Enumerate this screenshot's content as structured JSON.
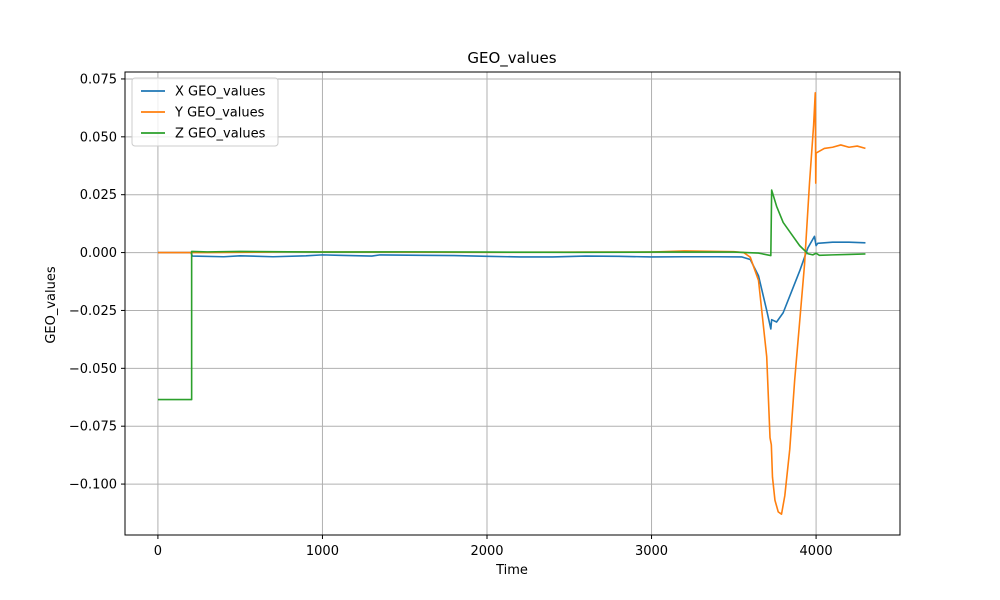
{
  "chart_data": {
    "type": "line",
    "title": "GEO_values",
    "xlabel": "Time",
    "ylabel": "GEO_values",
    "xlim": [
      -200,
      4510
    ],
    "ylim": [
      -0.122,
      0.078
    ],
    "xticks": [
      0,
      1000,
      2000,
      3000,
      4000
    ],
    "xtick_labels": [
      "0",
      "1000",
      "2000",
      "3000",
      "4000"
    ],
    "yticks": [
      -0.1,
      -0.075,
      -0.05,
      -0.025,
      0.0,
      0.025,
      0.05,
      0.075
    ],
    "ytick_labels": [
      "−0.100",
      "−0.075",
      "−0.050",
      "−0.025",
      "0.000",
      "0.025",
      "0.050",
      "0.075"
    ],
    "grid": true,
    "legend_position": "upper-left",
    "series": [
      {
        "name": "X GEO_values",
        "color": "#1f77b4",
        "points": [
          [
            0,
            0.0
          ],
          [
            200,
            0.0
          ],
          [
            210,
            -0.0015
          ],
          [
            400,
            -0.0018
          ],
          [
            500,
            -0.0014
          ],
          [
            700,
            -0.0018
          ],
          [
            900,
            -0.0014
          ],
          [
            1000,
            -0.001
          ],
          [
            1100,
            -0.0012
          ],
          [
            1300,
            -0.0015
          ],
          [
            1350,
            -0.001
          ],
          [
            1600,
            -0.0012
          ],
          [
            1800,
            -0.0013
          ],
          [
            2000,
            -0.0016
          ],
          [
            2200,
            -0.0019
          ],
          [
            2400,
            -0.0019
          ],
          [
            2600,
            -0.0015
          ],
          [
            2800,
            -0.0016
          ],
          [
            3000,
            -0.0019
          ],
          [
            3200,
            -0.0018
          ],
          [
            3400,
            -0.0018
          ],
          [
            3550,
            -0.0019
          ],
          [
            3600,
            -0.003
          ],
          [
            3650,
            -0.01
          ],
          [
            3700,
            -0.025
          ],
          [
            3725,
            -0.033
          ],
          [
            3730,
            -0.029
          ],
          [
            3760,
            -0.03
          ],
          [
            3800,
            -0.026
          ],
          [
            3850,
            -0.017
          ],
          [
            3900,
            -0.008
          ],
          [
            3950,
            0.002
          ],
          [
            3990,
            0.007
          ],
          [
            4000,
            0.003
          ],
          [
            4010,
            0.004
          ],
          [
            4100,
            0.0045
          ],
          [
            4200,
            0.0045
          ],
          [
            4300,
            0.0042
          ]
        ]
      },
      {
        "name": "Y GEO_values",
        "color": "#ff7f0e",
        "points": [
          [
            0,
            0.0
          ],
          [
            200,
            0.0
          ],
          [
            300,
            0.0
          ],
          [
            800,
            0.0003
          ],
          [
            1400,
            0.0002
          ],
          [
            2000,
            0.0001
          ],
          [
            2600,
            0.0002
          ],
          [
            3000,
            0.0002
          ],
          [
            3200,
            0.0007
          ],
          [
            3500,
            0.0004
          ],
          [
            3560,
            0.0
          ],
          [
            3600,
            -0.002
          ],
          [
            3650,
            -0.012
          ],
          [
            3700,
            -0.045
          ],
          [
            3720,
            -0.08
          ],
          [
            3728,
            -0.083
          ],
          [
            3735,
            -0.097
          ],
          [
            3750,
            -0.107
          ],
          [
            3770,
            -0.112
          ],
          [
            3790,
            -0.113
          ],
          [
            3810,
            -0.105
          ],
          [
            3840,
            -0.085
          ],
          [
            3870,
            -0.055
          ],
          [
            3900,
            -0.03
          ],
          [
            3930,
            -0.005
          ],
          [
            3960,
            0.03
          ],
          [
            3985,
            0.055
          ],
          [
            3995,
            0.069
          ],
          [
            3998,
            0.03
          ],
          [
            4000,
            0.043
          ],
          [
            4050,
            0.045
          ],
          [
            4100,
            0.0455
          ],
          [
            4150,
            0.0465
          ],
          [
            4200,
            0.0455
          ],
          [
            4250,
            0.046
          ],
          [
            4300,
            0.045
          ]
        ]
      },
      {
        "name": "Z GEO_values",
        "color": "#2ca02c",
        "points": [
          [
            0,
            -0.0635
          ],
          [
            205,
            -0.0635
          ],
          [
            205,
            0.0005
          ],
          [
            300,
            0.0003
          ],
          [
            500,
            0.0005
          ],
          [
            1000,
            0.0002
          ],
          [
            1500,
            0.0003
          ],
          [
            2000,
            0.0002
          ],
          [
            2500,
            0.0001
          ],
          [
            3000,
            0.0002
          ],
          [
            3500,
            0.0002
          ],
          [
            3650,
            -0.0002
          ],
          [
            3725,
            -0.0013
          ],
          [
            3730,
            0.027
          ],
          [
            3760,
            0.02
          ],
          [
            3800,
            0.013
          ],
          [
            3850,
            0.008
          ],
          [
            3900,
            0.003
          ],
          [
            3950,
            -0.0005
          ],
          [
            3980,
            -0.001
          ],
          [
            4000,
            -0.0003
          ],
          [
            4020,
            -0.0012
          ],
          [
            4100,
            -0.001
          ],
          [
            4200,
            -0.0008
          ],
          [
            4300,
            -0.0006
          ]
        ]
      }
    ]
  }
}
